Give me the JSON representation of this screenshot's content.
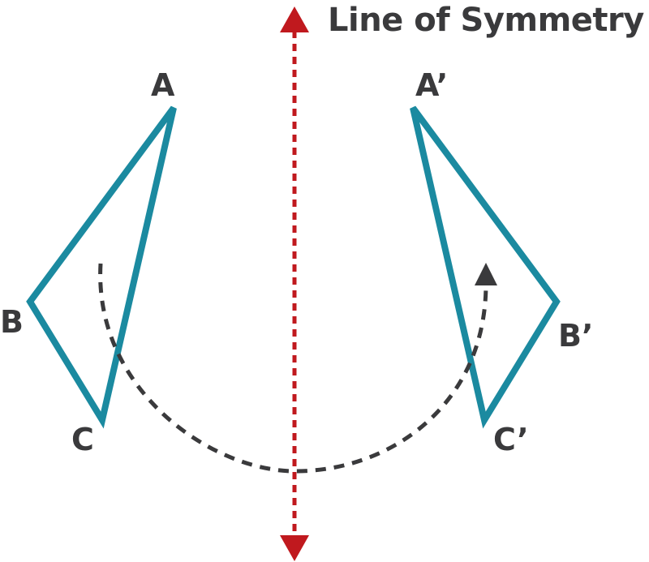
{
  "title": "Line of Symmetry",
  "vertices": {
    "original": {
      "a": "A",
      "b": "B",
      "c": "C"
    },
    "image": {
      "a": "A’",
      "b": "B’",
      "c": "C’"
    }
  },
  "colors": {
    "triangle": "#1b8aa0",
    "axis": "#c0191e",
    "arc": "#3a3a3c",
    "text": "#3a3a3c"
  },
  "icons": {
    "axis_top": "triangle-up-arrowhead",
    "axis_bottom": "triangle-down-arrowhead",
    "arc_end": "triangle-up-arrowhead"
  }
}
